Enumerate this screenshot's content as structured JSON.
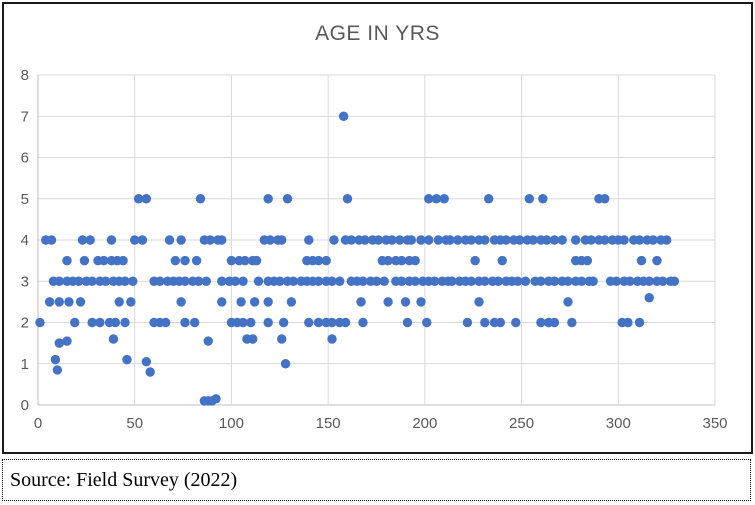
{
  "chart_data": {
    "type": "scatter",
    "title": "AGE IN YRS",
    "xlabel": "",
    "ylabel": "",
    "xlim": [
      0,
      350
    ],
    "ylim": [
      0,
      8
    ],
    "x_ticks": [
      0,
      50,
      100,
      150,
      200,
      250,
      300,
      350
    ],
    "y_ticks": [
      0,
      1,
      2,
      3,
      4,
      5,
      6,
      7,
      8
    ],
    "grid": true,
    "legend": "none",
    "marker_color": "#4472C4",
    "points": [
      [
        158,
        7
      ],
      [
        52,
        5
      ],
      [
        56,
        5
      ],
      [
        84,
        5
      ],
      [
        119,
        5
      ],
      [
        129,
        5
      ],
      [
        160,
        5
      ],
      [
        202,
        5
      ],
      [
        206,
        5
      ],
      [
        210,
        5
      ],
      [
        233,
        5
      ],
      [
        254,
        5
      ],
      [
        261,
        5
      ],
      [
        290,
        5
      ],
      [
        293,
        5
      ],
      [
        4,
        4
      ],
      [
        7,
        4
      ],
      [
        23,
        4
      ],
      [
        27,
        4
      ],
      [
        38,
        4
      ],
      [
        50,
        4
      ],
      [
        54,
        4
      ],
      [
        68,
        4
      ],
      [
        74,
        4
      ],
      [
        86,
        4
      ],
      [
        89,
        4
      ],
      [
        93,
        4
      ],
      [
        95,
        4
      ],
      [
        117,
        4
      ],
      [
        120,
        4
      ],
      [
        124,
        4
      ],
      [
        126,
        4
      ],
      [
        140,
        4
      ],
      [
        153,
        4
      ],
      [
        159,
        4
      ],
      [
        162,
        4
      ],
      [
        166,
        4
      ],
      [
        169,
        4
      ],
      [
        173,
        4
      ],
      [
        176,
        4
      ],
      [
        180,
        4
      ],
      [
        183,
        4
      ],
      [
        187,
        4
      ],
      [
        191,
        4
      ],
      [
        193,
        4
      ],
      [
        198,
        4
      ],
      [
        202,
        4
      ],
      [
        207,
        4
      ],
      [
        211,
        4
      ],
      [
        213,
        4
      ],
      [
        217,
        4
      ],
      [
        221,
        4
      ],
      [
        224,
        4
      ],
      [
        228,
        4
      ],
      [
        231,
        4
      ],
      [
        236,
        4
      ],
      [
        239,
        4
      ],
      [
        242,
        4
      ],
      [
        246,
        4
      ],
      [
        249,
        4
      ],
      [
        253,
        4
      ],
      [
        256,
        4
      ],
      [
        260,
        4
      ],
      [
        263,
        4
      ],
      [
        267,
        4
      ],
      [
        271,
        4
      ],
      [
        278,
        4
      ],
      [
        283,
        4
      ],
      [
        286,
        4
      ],
      [
        290,
        4
      ],
      [
        293,
        4
      ],
      [
        297,
        4
      ],
      [
        300,
        4
      ],
      [
        303,
        4
      ],
      [
        308,
        4
      ],
      [
        311,
        4
      ],
      [
        315,
        4
      ],
      [
        318,
        4
      ],
      [
        322,
        4
      ],
      [
        325,
        4
      ],
      [
        15,
        3.5
      ],
      [
        24,
        3.5
      ],
      [
        31,
        3.5
      ],
      [
        34,
        3.5
      ],
      [
        38,
        3.5
      ],
      [
        41,
        3.5
      ],
      [
        44,
        3.5
      ],
      [
        71,
        3.5
      ],
      [
        76,
        3.5
      ],
      [
        82,
        3.5
      ],
      [
        100,
        3.5
      ],
      [
        104,
        3.5
      ],
      [
        107,
        3.5
      ],
      [
        111,
        3.5
      ],
      [
        113,
        3.5
      ],
      [
        139,
        3.5
      ],
      [
        142,
        3.5
      ],
      [
        145,
        3.5
      ],
      [
        149,
        3.5
      ],
      [
        178,
        3.5
      ],
      [
        181,
        3.5
      ],
      [
        185,
        3.5
      ],
      [
        188,
        3.5
      ],
      [
        192,
        3.5
      ],
      [
        195,
        3.5
      ],
      [
        226,
        3.5
      ],
      [
        240,
        3.5
      ],
      [
        278,
        3.5
      ],
      [
        281,
        3.5
      ],
      [
        284,
        3.5
      ],
      [
        312,
        3.5
      ],
      [
        320,
        3.5
      ],
      [
        8,
        3
      ],
      [
        11,
        3
      ],
      [
        15,
        3
      ],
      [
        18,
        3
      ],
      [
        21,
        3
      ],
      [
        25,
        3
      ],
      [
        28,
        3
      ],
      [
        32,
        3
      ],
      [
        35,
        3
      ],
      [
        39,
        3
      ],
      [
        42,
        3
      ],
      [
        45,
        3
      ],
      [
        49,
        3
      ],
      [
        60,
        3
      ],
      [
        63,
        3
      ],
      [
        67,
        3
      ],
      [
        70,
        3
      ],
      [
        73,
        3
      ],
      [
        76,
        3
      ],
      [
        80,
        3
      ],
      [
        83,
        3
      ],
      [
        87,
        3
      ],
      [
        95,
        3
      ],
      [
        99,
        3
      ],
      [
        102,
        3
      ],
      [
        106,
        3
      ],
      [
        114,
        3
      ],
      [
        119,
        3
      ],
      [
        122,
        3
      ],
      [
        125,
        3
      ],
      [
        129,
        3
      ],
      [
        132,
        3
      ],
      [
        136,
        3
      ],
      [
        139,
        3
      ],
      [
        142,
        3
      ],
      [
        145,
        3
      ],
      [
        149,
        3
      ],
      [
        152,
        3
      ],
      [
        156,
        3
      ],
      [
        162,
        3
      ],
      [
        165,
        3
      ],
      [
        168,
        3
      ],
      [
        172,
        3
      ],
      [
        175,
        3
      ],
      [
        179,
        3
      ],
      [
        185,
        3
      ],
      [
        188,
        3
      ],
      [
        192,
        3
      ],
      [
        195,
        3
      ],
      [
        199,
        3
      ],
      [
        202,
        3
      ],
      [
        205,
        3
      ],
      [
        209,
        3
      ],
      [
        212,
        3
      ],
      [
        214,
        3
      ],
      [
        218,
        3
      ],
      [
        221,
        3
      ],
      [
        224,
        3
      ],
      [
        228,
        3
      ],
      [
        231,
        3
      ],
      [
        235,
        3
      ],
      [
        238,
        3
      ],
      [
        242,
        3
      ],
      [
        245,
        3
      ],
      [
        248,
        3
      ],
      [
        252,
        3
      ],
      [
        257,
        3
      ],
      [
        260,
        3
      ],
      [
        264,
        3
      ],
      [
        267,
        3
      ],
      [
        271,
        3
      ],
      [
        274,
        3
      ],
      [
        278,
        3
      ],
      [
        281,
        3
      ],
      [
        285,
        3
      ],
      [
        287,
        3
      ],
      [
        296,
        3
      ],
      [
        299,
        3
      ],
      [
        303,
        3
      ],
      [
        306,
        3
      ],
      [
        310,
        3
      ],
      [
        313,
        3
      ],
      [
        316,
        3
      ],
      [
        320,
        3
      ],
      [
        323,
        3
      ],
      [
        327,
        3
      ],
      [
        329,
        3
      ],
      [
        6,
        2.5
      ],
      [
        11,
        2.5
      ],
      [
        16,
        2.5
      ],
      [
        22,
        2.5
      ],
      [
        42,
        2.5
      ],
      [
        48,
        2.5
      ],
      [
        74,
        2.5
      ],
      [
        95,
        2.5
      ],
      [
        105,
        2.5
      ],
      [
        112,
        2.5
      ],
      [
        119,
        2.5
      ],
      [
        131,
        2.5
      ],
      [
        167,
        2.5
      ],
      [
        181,
        2.5
      ],
      [
        190,
        2.5
      ],
      [
        198,
        2.5
      ],
      [
        228,
        2.5
      ],
      [
        274,
        2.5
      ],
      [
        316,
        2.6
      ],
      [
        1,
        2
      ],
      [
        19,
        2
      ],
      [
        28,
        2
      ],
      [
        32,
        2
      ],
      [
        37,
        2
      ],
      [
        40,
        2
      ],
      [
        45,
        2
      ],
      [
        60,
        2
      ],
      [
        63,
        2
      ],
      [
        66,
        2
      ],
      [
        76,
        2
      ],
      [
        81,
        2
      ],
      [
        100,
        2
      ],
      [
        103,
        2
      ],
      [
        106,
        2
      ],
      [
        110,
        2
      ],
      [
        119,
        2
      ],
      [
        127,
        2
      ],
      [
        140,
        2
      ],
      [
        145,
        2
      ],
      [
        149,
        2
      ],
      [
        152,
        2
      ],
      [
        156,
        2
      ],
      [
        159,
        2
      ],
      [
        168,
        2
      ],
      [
        191,
        2
      ],
      [
        201,
        2
      ],
      [
        222,
        2
      ],
      [
        231,
        2
      ],
      [
        236,
        2
      ],
      [
        239,
        2
      ],
      [
        247,
        2
      ],
      [
        260,
        2
      ],
      [
        264,
        2
      ],
      [
        267,
        2
      ],
      [
        276,
        2
      ],
      [
        302,
        2
      ],
      [
        305,
        2
      ],
      [
        311,
        2
      ],
      [
        11,
        1.5
      ],
      [
        15,
        1.55
      ],
      [
        39,
        1.6
      ],
      [
        88,
        1.55
      ],
      [
        108,
        1.6
      ],
      [
        111,
        1.6
      ],
      [
        126,
        1.6
      ],
      [
        152,
        1.6
      ],
      [
        9,
        1.1
      ],
      [
        10,
        0.85
      ],
      [
        46,
        1.1
      ],
      [
        56,
        1.05
      ],
      [
        58,
        0.8
      ],
      [
        128,
        1
      ],
      [
        86,
        0.1
      ],
      [
        88,
        0.1
      ],
      [
        90,
        0.1
      ],
      [
        92,
        0.15
      ]
    ]
  },
  "caption": {
    "text": "Source: Field Survey (2022)"
  },
  "colors": {
    "marker": "#4472C4",
    "gridline": "#D9D9D9",
    "axis_line": "#BFBFBF",
    "tick_label": "#595959",
    "title": "#595959",
    "chart_border": "#1A1A1A"
  }
}
